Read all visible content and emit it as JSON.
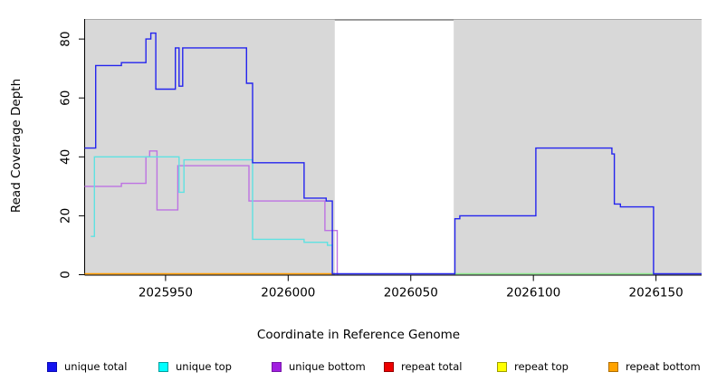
{
  "chart_data": {
    "type": "line",
    "subtype": "step-coverage",
    "title": "",
    "xlabel": "Coordinate in Reference Genome",
    "ylabel": "Read Coverage Depth",
    "xlim": [
      2025917,
      2026168.6
    ],
    "ylim": [
      0,
      86.8
    ],
    "x_ticks": [
      2025950,
      2026000,
      2026050,
      2026100,
      2026150
    ],
    "y_ticks": [
      0,
      20,
      40,
      60,
      80
    ],
    "grid": false,
    "legend_position": "bottom",
    "plot_background": "#d8d8d8",
    "plot_top_edge_color": "#a8a8a8",
    "uncovered_region": {
      "x_from": 2026019,
      "x_to": 2026067.5,
      "color": "#ffffff",
      "top_line_color": "#8a8a8a"
    },
    "series": [
      {
        "name": "unique bottom",
        "color": "#bd72e2",
        "x_end": 2026020.5,
        "steps": [
          [
            2025917,
            30
          ],
          [
            2025932,
            31
          ],
          [
            2025942,
            40
          ],
          [
            2025943.5,
            42
          ],
          [
            2025946.5,
            22
          ],
          [
            2025955,
            37
          ],
          [
            2025984,
            25
          ],
          [
            2026015,
            15
          ],
          [
            2026020,
            0
          ]
        ]
      },
      {
        "name": "unique top",
        "color": "#5fe2e2",
        "x_end": 2026019,
        "steps": [
          [
            2025919.5,
            13
          ],
          [
            2025921,
            40
          ],
          [
            2025955.5,
            28
          ],
          [
            2025957.5,
            39
          ],
          [
            2025985.5,
            12
          ],
          [
            2026006.5,
            11
          ],
          [
            2026016,
            10
          ],
          [
            2026018,
            0
          ]
        ]
      },
      {
        "name": "repeat bottom",
        "color": "#ff9c00",
        "x_end": 2026019,
        "steps": [
          [
            2025917,
            0
          ]
        ]
      },
      {
        "name": "unlabeled-zero-baseline",
        "color": "#8ce98c",
        "x_end": 2026149,
        "steps": [
          [
            2026068,
            0
          ]
        ]
      },
      {
        "name": "unique total",
        "color": "#2424ee",
        "x_end": 2026168.6,
        "steps": [
          [
            2025917,
            43
          ],
          [
            2025921.5,
            71
          ],
          [
            2025932,
            72
          ],
          [
            2025942,
            80
          ],
          [
            2025944,
            82
          ],
          [
            2025946,
            63
          ],
          [
            2025954,
            77
          ],
          [
            2025955.5,
            64
          ],
          [
            2025957,
            77
          ],
          [
            2025983,
            65
          ],
          [
            2025985.5,
            38
          ],
          [
            2026006.5,
            26
          ],
          [
            2026015.5,
            25
          ],
          [
            2026018,
            0
          ],
          [
            2026068,
            19
          ],
          [
            2026070,
            20
          ],
          [
            2026101,
            43
          ],
          [
            2026132,
            41
          ],
          [
            2026133,
            24
          ],
          [
            2026135.5,
            23
          ],
          [
            2026149,
            0
          ]
        ]
      }
    ]
  },
  "legend": {
    "items": [
      {
        "label": "unique total",
        "fill": "#1414f0",
        "border": "#0b0bb4"
      },
      {
        "label": "unique top",
        "fill": "#00ffff",
        "border": "#009e9e"
      },
      {
        "label": "unique bottom",
        "fill": "#a11fe0",
        "border": "#7616a8"
      },
      {
        "label": "repeat total",
        "fill": "#ee0000",
        "border": "#960000"
      },
      {
        "label": "repeat top",
        "fill": "#ffff00",
        "border": "#9e9e00"
      },
      {
        "label": "repeat bottom",
        "fill": "#ffa300",
        "border": "#b06e00"
      }
    ]
  }
}
